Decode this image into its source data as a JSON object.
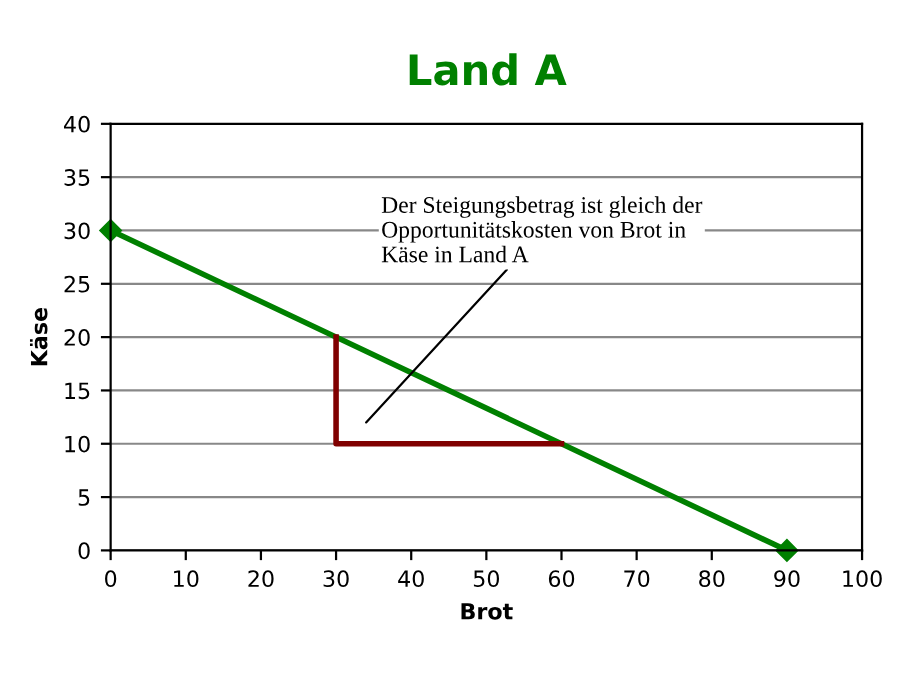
{
  "chart_data": {
    "type": "line",
    "title": "Land A",
    "xlabel": "Brot",
    "ylabel": "Käse",
    "series": [
      {
        "x": [
          0,
          90
        ],
        "values": [
          30,
          0
        ],
        "color": "#008000",
        "marker": "diamond"
      },
      {
        "x": [
          30,
          30,
          60
        ],
        "values": [
          20,
          10,
          10
        ],
        "color": "#800000",
        "marker": "none"
      }
    ],
    "annotations": [
      "Der Steigungsbetrag ist gleich der\nOpportunitätskosten von Brot in\nKäse in Land A"
    ],
    "xlim": [
      0,
      100
    ],
    "ylim": [
      0,
      40
    ],
    "xticks": [
      0,
      10,
      20,
      30,
      40,
      50,
      60,
      70,
      80,
      90,
      100
    ],
    "yticks": [
      0,
      5,
      10,
      15,
      20,
      25,
      30,
      35,
      40
    ],
    "grid": "y",
    "legend": false
  }
}
